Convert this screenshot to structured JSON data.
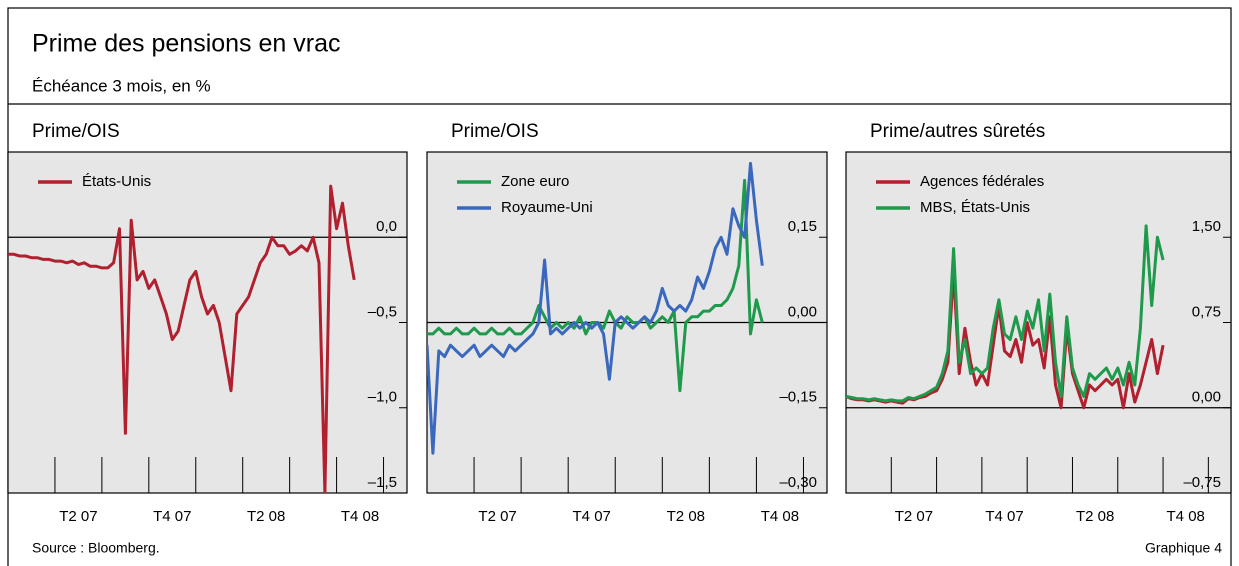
{
  "title": "Prime des pensions en vrac",
  "subtitle": "Échéance 3 mois, en %",
  "source": "Source : Bloomberg.",
  "figure_label": "Graphique 4",
  "chart_data": [
    {
      "type": "line",
      "title": "Prime/OIS",
      "xlim": [
        0,
        8.5
      ],
      "xticks": [
        1,
        2,
        3,
        4,
        5,
        6,
        7,
        8
      ],
      "xlabels": [
        {
          "value": 1.5,
          "label": "T2 07"
        },
        {
          "value": 3.5,
          "label": "T4 07"
        },
        {
          "value": 5.5,
          "label": "T2 08"
        },
        {
          "value": 7.5,
          "label": "T4 08"
        }
      ],
      "ylim": [
        -1.5,
        0.5
      ],
      "yticks": [
        {
          "value": 0,
          "label": "0,0"
        },
        {
          "value": -0.5,
          "label": "–0,5"
        },
        {
          "value": -1.0,
          "label": "–1,0"
        },
        {
          "value": -1.5,
          "label": "–1,5"
        }
      ],
      "x": [
        0,
        0.125,
        0.25,
        0.375,
        0.5,
        0.625,
        0.75,
        0.875,
        1,
        1.125,
        1.25,
        1.375,
        1.5,
        1.625,
        1.75,
        1.875,
        2,
        2.125,
        2.25,
        2.375,
        2.5,
        2.625,
        2.75,
        2.875,
        3,
        3.125,
        3.25,
        3.375,
        3.5,
        3.625,
        3.75,
        3.875,
        4,
        4.125,
        4.25,
        4.375,
        4.5,
        4.625,
        4.75,
        4.875,
        5,
        5.125,
        5.25,
        5.375,
        5.5,
        5.625,
        5.75,
        5.875,
        6,
        6.125,
        6.25,
        6.375,
        6.5,
        6.625,
        6.75,
        6.875,
        7,
        7.125,
        7.25,
        7.375
      ],
      "series": [
        {
          "name": "États-Unis",
          "color": "#b0202f",
          "values": [
            -0.1,
            -0.1,
            -0.11,
            -0.11,
            -0.12,
            -0.12,
            -0.13,
            -0.13,
            -0.14,
            -0.14,
            -0.15,
            -0.14,
            -0.16,
            -0.15,
            -0.17,
            -0.17,
            -0.18,
            -0.18,
            -0.15,
            0.05,
            -1.15,
            0.1,
            -0.25,
            -0.2,
            -0.3,
            -0.25,
            -0.35,
            -0.45,
            -0.6,
            -0.55,
            -0.4,
            -0.25,
            -0.2,
            -0.35,
            -0.45,
            -0.4,
            -0.5,
            -0.7,
            -0.9,
            -0.45,
            -0.4,
            -0.35,
            -0.25,
            -0.15,
            -0.1,
            0.0,
            -0.05,
            -0.05,
            -0.1,
            -0.08,
            -0.05,
            -0.08,
            0.0,
            -0.15,
            -1.5,
            0.3,
            0.05,
            0.2,
            -0.05,
            -0.25
          ]
        }
      ]
    },
    {
      "type": "line",
      "title": "Prime/OIS",
      "xlim": [
        0,
        8.5
      ],
      "xticks": [
        1,
        2,
        3,
        4,
        5,
        6,
        7,
        8
      ],
      "xlabels": [
        {
          "value": 1.5,
          "label": "T2 07"
        },
        {
          "value": 3.5,
          "label": "T4 07"
        },
        {
          "value": 5.5,
          "label": "T2 08"
        },
        {
          "value": 7.5,
          "label": "T4 08"
        }
      ],
      "ylim": [
        -0.3,
        0.3
      ],
      "yticks": [
        {
          "value": 0.15,
          "label": "0,15"
        },
        {
          "value": 0,
          "label": "0,00"
        },
        {
          "value": -0.15,
          "label": "–0,15"
        },
        {
          "value": -0.3,
          "label": "–0,30"
        }
      ],
      "x": [
        0,
        0.125,
        0.25,
        0.375,
        0.5,
        0.625,
        0.75,
        0.875,
        1,
        1.125,
        1.25,
        1.375,
        1.5,
        1.625,
        1.75,
        1.875,
        2,
        2.125,
        2.25,
        2.375,
        2.5,
        2.625,
        2.75,
        2.875,
        3,
        3.125,
        3.25,
        3.375,
        3.5,
        3.625,
        3.75,
        3.875,
        4,
        4.125,
        4.25,
        4.375,
        4.5,
        4.625,
        4.75,
        4.875,
        5,
        5.125,
        5.25,
        5.375,
        5.5,
        5.625,
        5.75,
        5.875,
        6,
        6.125,
        6.25,
        6.375,
        6.5,
        6.625,
        6.75,
        6.875,
        7,
        7.125
      ],
      "series": [
        {
          "name": "Zone euro",
          "color": "#1f9a4c",
          "values": [
            -0.02,
            -0.02,
            -0.01,
            -0.02,
            -0.02,
            -0.01,
            -0.02,
            -0.02,
            -0.01,
            -0.02,
            -0.02,
            -0.01,
            -0.02,
            -0.02,
            -0.01,
            -0.02,
            -0.02,
            -0.01,
            0.0,
            0.03,
            0.01,
            -0.01,
            0.0,
            -0.01,
            0.0,
            -0.01,
            0.01,
            -0.02,
            0.0,
            0.0,
            -0.01,
            0.02,
            0.0,
            -0.01,
            0.01,
            0.0,
            0.0,
            0.01,
            -0.01,
            0.0,
            0.01,
            0.0,
            0.02,
            -0.12,
            0.0,
            0.01,
            0.01,
            0.02,
            0.02,
            0.03,
            0.03,
            0.04,
            0.06,
            0.1,
            0.25,
            -0.02,
            0.04,
            0.0
          ]
        },
        {
          "name": "Royaume-Uni",
          "color": "#3a68bd",
          "values": [
            -0.04,
            -0.23,
            -0.05,
            -0.06,
            -0.04,
            -0.05,
            -0.06,
            -0.05,
            -0.04,
            -0.06,
            -0.05,
            -0.04,
            -0.05,
            -0.06,
            -0.04,
            -0.05,
            -0.04,
            -0.03,
            -0.02,
            0.0,
            0.11,
            -0.02,
            -0.01,
            -0.02,
            -0.01,
            0.0,
            -0.01,
            0.0,
            -0.01,
            0.0,
            -0.02,
            -0.1,
            0.0,
            0.01,
            0.0,
            -0.01,
            0.0,
            0.01,
            0.0,
            0.02,
            0.06,
            0.03,
            0.02,
            0.03,
            0.02,
            0.04,
            0.08,
            0.06,
            0.09,
            0.13,
            0.15,
            0.12,
            0.2,
            0.17,
            0.15,
            0.28,
            0.18,
            0.1
          ]
        }
      ]
    },
    {
      "type": "line",
      "title": "Prime/autres sûretés",
      "xlim": [
        0,
        8.5
      ],
      "xticks": [
        1,
        2,
        3,
        4,
        5,
        6,
        7,
        8
      ],
      "xlabels": [
        {
          "value": 1.5,
          "label": "T2 07"
        },
        {
          "value": 3.5,
          "label": "T4 07"
        },
        {
          "value": 5.5,
          "label": "T2 08"
        },
        {
          "value": 7.5,
          "label": "T4 08"
        }
      ],
      "ylim": [
        -0.75,
        2.25
      ],
      "yticks": [
        {
          "value": 1.5,
          "label": "1,50"
        },
        {
          "value": 0.75,
          "label": "0,75"
        },
        {
          "value": 0,
          "label": "0,00"
        },
        {
          "value": -0.75,
          "label": "–0,75"
        }
      ],
      "x": [
        0,
        0.125,
        0.25,
        0.375,
        0.5,
        0.625,
        0.75,
        0.875,
        1,
        1.125,
        1.25,
        1.375,
        1.5,
        1.625,
        1.75,
        1.875,
        2,
        2.125,
        2.25,
        2.375,
        2.5,
        2.625,
        2.75,
        2.875,
        3,
        3.125,
        3.25,
        3.375,
        3.5,
        3.625,
        3.75,
        3.875,
        4,
        4.125,
        4.25,
        4.375,
        4.5,
        4.625,
        4.75,
        4.875,
        5,
        5.125,
        5.25,
        5.375,
        5.5,
        5.625,
        5.75,
        5.875,
        6,
        6.125,
        6.25,
        6.375,
        6.5,
        6.625,
        6.75,
        6.875,
        7
      ],
      "series": [
        {
          "name": "Agences fédérales",
          "color": "#b0202f",
          "values": [
            0.1,
            0.08,
            0.07,
            0.07,
            0.06,
            0.07,
            0.06,
            0.05,
            0.06,
            0.05,
            0.04,
            0.08,
            0.07,
            0.09,
            0.1,
            0.13,
            0.15,
            0.25,
            0.4,
            1.2,
            0.3,
            0.7,
            0.4,
            0.2,
            0.3,
            0.2,
            0.55,
            0.9,
            0.5,
            0.45,
            0.6,
            0.4,
            0.75,
            0.55,
            0.6,
            0.35,
            0.8,
            0.2,
            0.0,
            0.7,
            0.3,
            0.15,
            0.0,
            0.2,
            0.15,
            0.2,
            0.25,
            0.2,
            0.25,
            0.0,
            0.3,
            0.05,
            0.2,
            0.4,
            0.6,
            0.3,
            0.55
          ]
        },
        {
          "name": "MBS, États-Unis",
          "color": "#1f9a4c",
          "values": [
            0.1,
            0.09,
            0.08,
            0.08,
            0.07,
            0.08,
            0.07,
            0.06,
            0.07,
            0.06,
            0.06,
            0.09,
            0.08,
            0.1,
            0.12,
            0.15,
            0.18,
            0.3,
            0.5,
            1.4,
            0.4,
            0.6,
            0.3,
            0.35,
            0.3,
            0.35,
            0.7,
            0.95,
            0.65,
            0.6,
            0.8,
            0.6,
            0.85,
            0.7,
            0.95,
            0.5,
            1.0,
            0.4,
            0.1,
            0.8,
            0.35,
            0.2,
            0.1,
            0.3,
            0.25,
            0.3,
            0.35,
            0.25,
            0.35,
            0.2,
            0.4,
            0.2,
            0.7,
            1.6,
            0.9,
            1.5,
            1.3
          ]
        }
      ]
    }
  ]
}
